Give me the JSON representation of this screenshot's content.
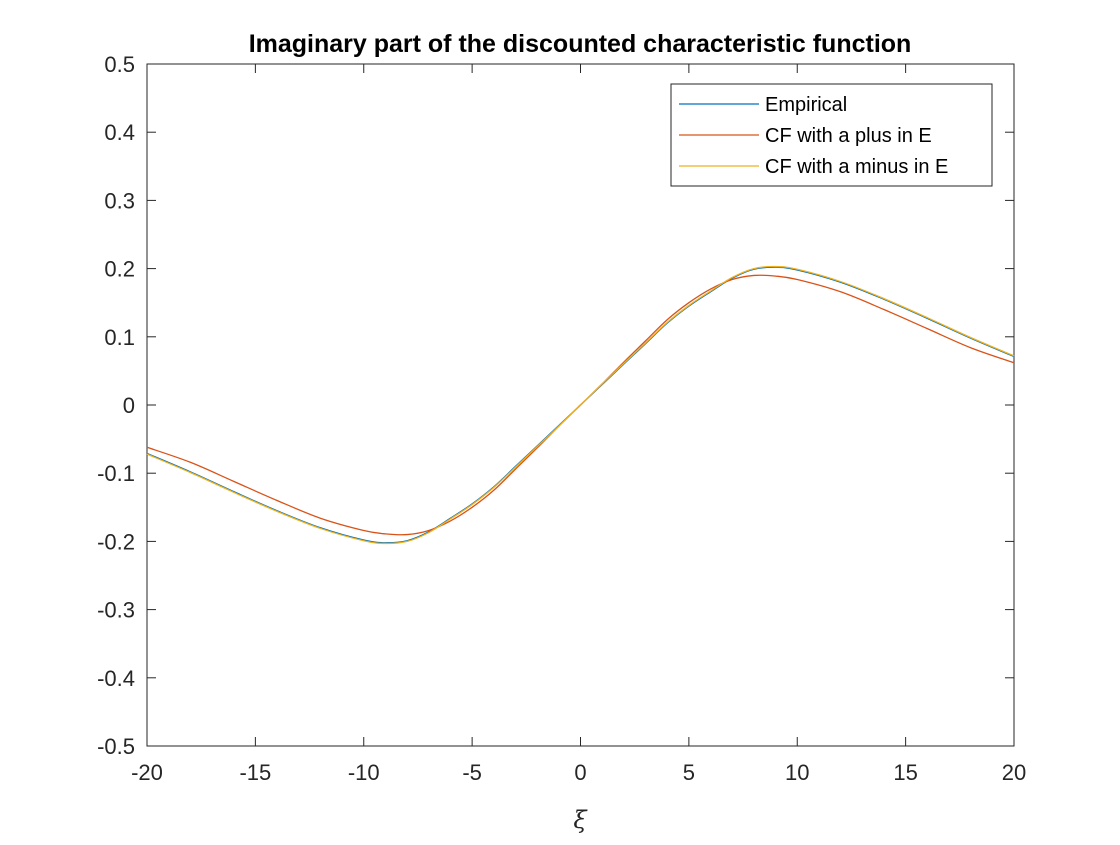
{
  "chart_data": {
    "type": "line",
    "title": "Imaginary part of the discounted characteristic function",
    "xlabel": "ξ",
    "ylabel": "",
    "xlim": [
      -20,
      20
    ],
    "ylim": [
      -0.5,
      0.5
    ],
    "xticks": [
      -20,
      -15,
      -10,
      -5,
      0,
      5,
      10,
      15,
      20
    ],
    "xtick_labels": [
      "-20",
      "-15",
      "-10",
      "-5",
      "0",
      "5",
      "10",
      "15",
      "20"
    ],
    "yticks": [
      -0.5,
      -0.4,
      -0.3,
      -0.2,
      -0.1,
      0,
      0.1,
      0.2,
      0.3,
      0.4,
      0.5
    ],
    "ytick_labels": [
      "-0.5",
      "-0.4",
      "-0.3",
      "-0.2",
      "-0.1",
      "0",
      "0.1",
      "0.2",
      "0.3",
      "0.4",
      "0.5"
    ],
    "grid": false,
    "legend_position": "top-right",
    "x": [
      -20,
      -18,
      -16,
      -14,
      -12,
      -10,
      -9,
      -8,
      -7,
      -6,
      -5,
      -4,
      -3,
      -2,
      -1,
      0,
      1,
      2,
      3,
      4,
      5,
      6,
      7,
      8,
      9,
      10,
      12,
      14,
      16,
      18,
      20
    ],
    "series": [
      {
        "name": "Empirical",
        "color": "#0072BD",
        "values": [
          -0.071,
          -0.098,
          -0.127,
          -0.155,
          -0.18,
          -0.198,
          -0.202,
          -0.199,
          -0.186,
          -0.166,
          -0.145,
          -0.12,
          -0.09,
          -0.06,
          -0.03,
          0.0,
          0.03,
          0.06,
          0.09,
          0.12,
          0.145,
          0.166,
          0.186,
          0.199,
          0.202,
          0.198,
          0.18,
          0.155,
          0.127,
          0.098,
          0.071
        ]
      },
      {
        "name": "CF with a plus in E",
        "color": "#D95319",
        "values": [
          -0.062,
          -0.084,
          -0.112,
          -0.14,
          -0.166,
          -0.184,
          -0.189,
          -0.19,
          -0.184,
          -0.17,
          -0.15,
          -0.125,
          -0.094,
          -0.063,
          -0.031,
          0.0,
          0.031,
          0.063,
          0.094,
          0.125,
          0.15,
          0.17,
          0.184,
          0.19,
          0.189,
          0.184,
          0.166,
          0.14,
          0.112,
          0.084,
          0.062
        ]
      },
      {
        "name": "CF with a minus in E",
        "color": "#EDB120",
        "values": [
          -0.072,
          -0.099,
          -0.128,
          -0.156,
          -0.181,
          -0.199,
          -0.203,
          -0.2,
          -0.187,
          -0.167,
          -0.146,
          -0.121,
          -0.091,
          -0.061,
          -0.031,
          0.0,
          0.031,
          0.061,
          0.091,
          0.121,
          0.146,
          0.167,
          0.187,
          0.2,
          0.203,
          0.199,
          0.181,
          0.156,
          0.128,
          0.099,
          0.072
        ]
      }
    ]
  }
}
